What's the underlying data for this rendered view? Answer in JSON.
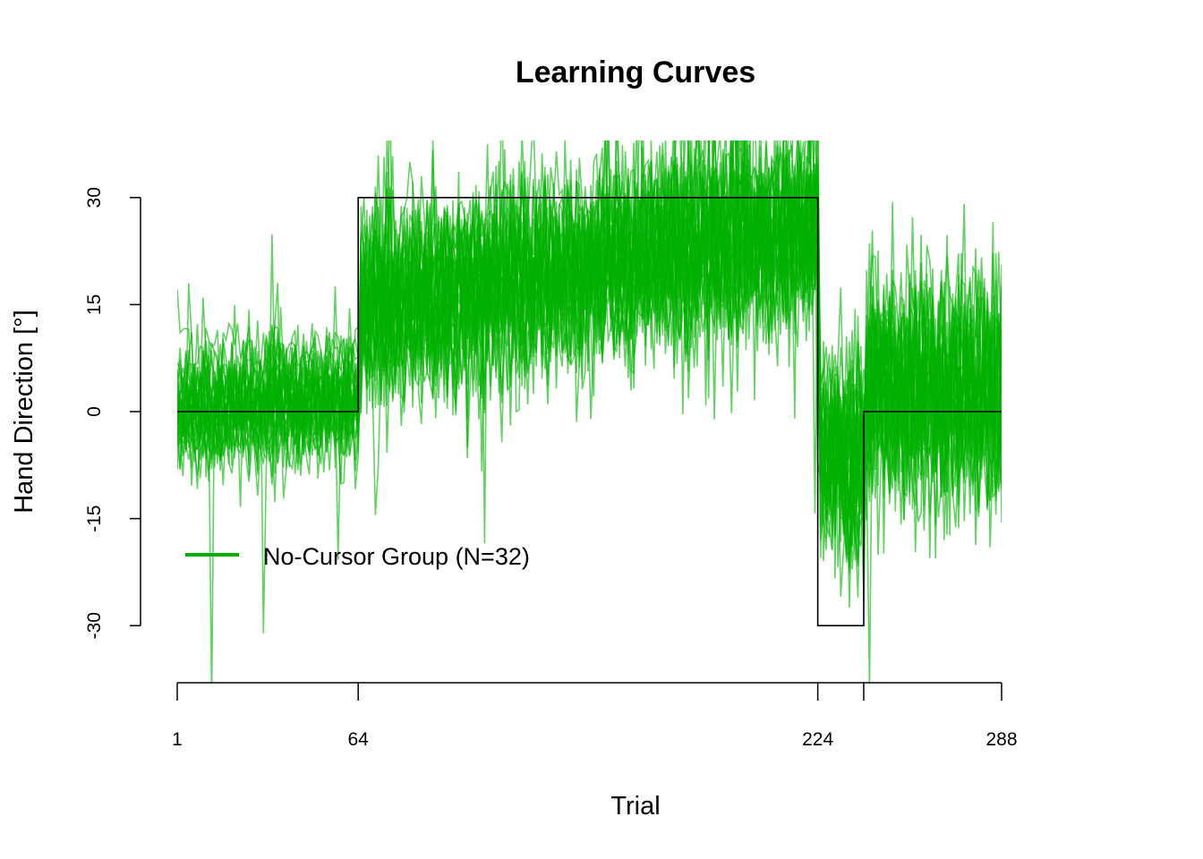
{
  "chart_data": {
    "type": "line",
    "title": "Learning Curves",
    "xlabel": "Trial",
    "ylabel": "Hand Direction [°]",
    "xlim": [
      1,
      288
    ],
    "ylim": [
      -38,
      38
    ],
    "x_ticks": [
      1,
      64,
      224,
      240,
      288
    ],
    "x_tick_labels": [
      "1",
      "64",
      "224",
      "",
      "288"
    ],
    "y_ticks": [
      -30,
      -15,
      0,
      15,
      30
    ],
    "y_tick_labels": [
      "-30",
      "-15",
      "0",
      "15",
      "30"
    ],
    "grid": false,
    "legend": {
      "position": "bottom-left",
      "entries": [
        {
          "label": "No-Cursor Group (N=32)",
          "color": "#00b000"
        }
      ]
    },
    "schedule": {
      "color": "#000000",
      "segments": [
        {
          "x_start": 1,
          "x_end": 64,
          "y": 0
        },
        {
          "x_start": 64,
          "x_end": 224,
          "y": 30
        },
        {
          "x_start": 224,
          "x_end": 240,
          "y": -30
        },
        {
          "x_start": 240,
          "x_end": 288,
          "y": 0
        }
      ]
    },
    "participants": {
      "count": 32,
      "color": "#00b000",
      "phase_means": [
        {
          "x_start": 1,
          "x_end": 64,
          "y_start": 0,
          "y_end": 2
        },
        {
          "x_start": 64,
          "x_end": 224,
          "y_start": 14,
          "y_end": 26
        },
        {
          "x_start": 224,
          "x_end": 240,
          "y_start": -5,
          "y_end": -8
        },
        {
          "x_start": 240,
          "x_end": 288,
          "y_start": 3,
          "y_end": 2
        }
      ],
      "y_range": [
        -38,
        38
      ]
    }
  }
}
